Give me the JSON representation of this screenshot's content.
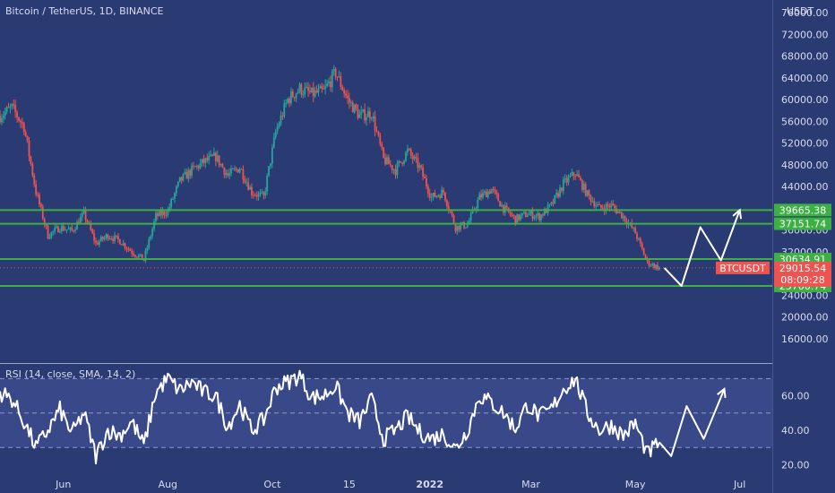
{
  "symbol_title": "Bitcoin / TetherUS, 1D, BINANCE",
  "currency": "USDT",
  "colors": {
    "background": "#2a3a72",
    "up": "#26a69a",
    "down": "#ef5350",
    "level_line": "#3cb043",
    "label_green": "#3cb043",
    "label_red": "#ef5350",
    "projection": "#ffffff",
    "rsi_line": "#ffffff",
    "rsi_band": "#3a4a8c"
  },
  "chart_data": [
    {
      "type": "candlestick",
      "title": "Bitcoin / TetherUS, 1D, BINANCE",
      "ylabel": "USDT",
      "y_ticks": [
        16000,
        20000,
        24000,
        28000,
        32000,
        36000,
        40000,
        44000,
        48000,
        52000,
        56000,
        60000,
        64000,
        68000,
        72000,
        76000
      ],
      "y_tick_labels": [
        "16000.00",
        "20000.00",
        "24000.00",
        "28000.00",
        "32000.00",
        "36000.00",
        "40000.00",
        "44000.00",
        "48000.00",
        "52000.00",
        "56000.00",
        "60000.00",
        "64000.00",
        "68000.00",
        "72000.00",
        "76000.00"
      ],
      "ylim": [
        12000,
        78000
      ],
      "x_labels": [
        "Jun",
        "Aug",
        "Oct",
        "15",
        "2022",
        "Mar",
        "May",
        "Jul"
      ],
      "x_label_dates": [
        "2021-06-01",
        "2021-08-01",
        "2021-10-01",
        "2021-11-15",
        "2022-01-01",
        "2022-03-01",
        "2022-05-01",
        "2022-07-01"
      ],
      "xlim": [
        "2021-04-25",
        "2022-07-20"
      ],
      "closes_weekly": [
        {
          "date": "2021-04-25",
          "close": 57000
        },
        {
          "date": "2021-05-02",
          "close": 58500
        },
        {
          "date": "2021-05-09",
          "close": 55000
        },
        {
          "date": "2021-05-16",
          "close": 43000
        },
        {
          "date": "2021-05-23",
          "close": 35000
        },
        {
          "date": "2021-05-30",
          "close": 36500
        },
        {
          "date": "2021-06-06",
          "close": 35800
        },
        {
          "date": "2021-06-13",
          "close": 39000
        },
        {
          "date": "2021-06-20",
          "close": 33500
        },
        {
          "date": "2021-06-27",
          "close": 35000
        },
        {
          "date": "2021-07-04",
          "close": 34000
        },
        {
          "date": "2021-07-11",
          "close": 32000
        },
        {
          "date": "2021-07-18",
          "close": 30500
        },
        {
          "date": "2021-07-25",
          "close": 38500
        },
        {
          "date": "2021-08-01",
          "close": 39500
        },
        {
          "date": "2021-08-08",
          "close": 45000
        },
        {
          "date": "2021-08-15",
          "close": 47000
        },
        {
          "date": "2021-08-22",
          "close": 48500
        },
        {
          "date": "2021-08-29",
          "close": 49500
        },
        {
          "date": "2021-09-05",
          "close": 46000
        },
        {
          "date": "2021-09-12",
          "close": 47500
        },
        {
          "date": "2021-09-19",
          "close": 43000
        },
        {
          "date": "2021-09-26",
          "close": 42000
        },
        {
          "date": "2021-10-03",
          "close": 54000
        },
        {
          "date": "2021-10-10",
          "close": 60000
        },
        {
          "date": "2021-10-17",
          "close": 62000
        },
        {
          "date": "2021-10-24",
          "close": 61000
        },
        {
          "date": "2021-10-31",
          "close": 61500
        },
        {
          "date": "2021-11-07",
          "close": 65000
        },
        {
          "date": "2021-11-14",
          "close": 60000
        },
        {
          "date": "2021-11-21",
          "close": 57000
        },
        {
          "date": "2021-11-28",
          "close": 57500
        },
        {
          "date": "2021-12-05",
          "close": 49000
        },
        {
          "date": "2021-12-12",
          "close": 47000
        },
        {
          "date": "2021-12-19",
          "close": 50500
        },
        {
          "date": "2021-12-26",
          "close": 47500
        },
        {
          "date": "2022-01-02",
          "close": 42000
        },
        {
          "date": "2022-01-09",
          "close": 43000
        },
        {
          "date": "2022-01-16",
          "close": 36500
        },
        {
          "date": "2022-01-23",
          "close": 37000
        },
        {
          "date": "2022-01-30",
          "close": 42000
        },
        {
          "date": "2022-02-06",
          "close": 43500
        },
        {
          "date": "2022-02-13",
          "close": 40000
        },
        {
          "date": "2022-02-20",
          "close": 38000
        },
        {
          "date": "2022-02-27",
          "close": 39000
        },
        {
          "date": "2022-03-06",
          "close": 38500
        },
        {
          "date": "2022-03-13",
          "close": 40500
        },
        {
          "date": "2022-03-20",
          "close": 44500
        },
        {
          "date": "2022-03-27",
          "close": 46500
        },
        {
          "date": "2022-04-03",
          "close": 42500
        },
        {
          "date": "2022-04-10",
          "close": 40000
        },
        {
          "date": "2022-04-17",
          "close": 40500
        },
        {
          "date": "2022-04-24",
          "close": 38500
        },
        {
          "date": "2022-05-01",
          "close": 35500
        },
        {
          "date": "2022-05-08",
          "close": 30000
        },
        {
          "date": "2022-05-15",
          "close": 29015.54
        }
      ],
      "levels": [
        {
          "value": 39665.38,
          "label": "39665.38"
        },
        {
          "value": 37151.74,
          "label": "37151.74"
        },
        {
          "value": 30634.91,
          "label": "30634.91"
        },
        {
          "value": 25700.74,
          "label": "25700.74"
        }
      ],
      "last_price": {
        "symbol": "BTCUSDT",
        "value": 29015.54,
        "label": "29015.54",
        "countdown": "08:09:28"
      },
      "projection_path": [
        {
          "date": "2022-05-18",
          "value": 29015.54
        },
        {
          "date": "2022-05-28",
          "value": 25700
        },
        {
          "date": "2022-06-08",
          "value": 36500
        },
        {
          "date": "2022-06-20",
          "value": 30400
        },
        {
          "date": "2022-07-01",
          "value": 39665
        }
      ]
    },
    {
      "type": "line",
      "title": "RSI (14, close, SMA, 14, 2)",
      "y_ticks": [
        20,
        40,
        60
      ],
      "y_tick_labels": [
        "20.00",
        "40.00",
        "60.00"
      ],
      "ylim": [
        15,
        78
      ],
      "band": [
        30,
        70
      ],
      "mid": 50,
      "values_weekly": [
        {
          "date": "2021-04-25",
          "value": 62
        },
        {
          "date": "2021-05-02",
          "value": 58
        },
        {
          "date": "2021-05-09",
          "value": 45
        },
        {
          "date": "2021-05-16",
          "value": 30
        },
        {
          "date": "2021-05-23",
          "value": 40
        },
        {
          "date": "2021-05-30",
          "value": 52
        },
        {
          "date": "2021-06-06",
          "value": 38
        },
        {
          "date": "2021-06-13",
          "value": 50
        },
        {
          "date": "2021-06-20",
          "value": 25
        },
        {
          "date": "2021-06-27",
          "value": 40
        },
        {
          "date": "2021-07-04",
          "value": 37
        },
        {
          "date": "2021-07-11",
          "value": 45
        },
        {
          "date": "2021-07-18",
          "value": 31
        },
        {
          "date": "2021-07-25",
          "value": 62
        },
        {
          "date": "2021-08-01",
          "value": 70
        },
        {
          "date": "2021-08-08",
          "value": 63
        },
        {
          "date": "2021-08-15",
          "value": 68
        },
        {
          "date": "2021-08-22",
          "value": 62
        },
        {
          "date": "2021-08-29",
          "value": 60
        },
        {
          "date": "2021-09-05",
          "value": 42
        },
        {
          "date": "2021-09-12",
          "value": 55
        },
        {
          "date": "2021-09-19",
          "value": 40
        },
        {
          "date": "2021-09-26",
          "value": 46
        },
        {
          "date": "2021-10-03",
          "value": 65
        },
        {
          "date": "2021-10-10",
          "value": 68
        },
        {
          "date": "2021-10-17",
          "value": 72
        },
        {
          "date": "2021-10-24",
          "value": 59
        },
        {
          "date": "2021-10-31",
          "value": 60
        },
        {
          "date": "2021-11-07",
          "value": 66
        },
        {
          "date": "2021-11-14",
          "value": 50
        },
        {
          "date": "2021-11-21",
          "value": 45
        },
        {
          "date": "2021-11-28",
          "value": 58
        },
        {
          "date": "2021-12-05",
          "value": 35
        },
        {
          "date": "2021-12-12",
          "value": 40
        },
        {
          "date": "2021-12-19",
          "value": 48
        },
        {
          "date": "2021-12-26",
          "value": 39
        },
        {
          "date": "2022-01-02",
          "value": 35
        },
        {
          "date": "2022-01-09",
          "value": 38
        },
        {
          "date": "2022-01-16",
          "value": 29
        },
        {
          "date": "2022-01-23",
          "value": 40
        },
        {
          "date": "2022-01-30",
          "value": 60
        },
        {
          "date": "2022-02-06",
          "value": 56
        },
        {
          "date": "2022-02-13",
          "value": 50
        },
        {
          "date": "2022-02-20",
          "value": 41
        },
        {
          "date": "2022-02-27",
          "value": 55
        },
        {
          "date": "2022-03-06",
          "value": 48
        },
        {
          "date": "2022-03-13",
          "value": 52
        },
        {
          "date": "2022-03-20",
          "value": 64
        },
        {
          "date": "2022-03-27",
          "value": 70
        },
        {
          "date": "2022-04-03",
          "value": 50
        },
        {
          "date": "2022-04-10",
          "value": 40
        },
        {
          "date": "2022-04-17",
          "value": 43
        },
        {
          "date": "2022-04-24",
          "value": 37
        },
        {
          "date": "2022-05-01",
          "value": 44
        },
        {
          "date": "2022-05-08",
          "value": 26
        },
        {
          "date": "2022-05-15",
          "value": 33
        }
      ],
      "projection_path": [
        {
          "date": "2022-05-15",
          "value": 33
        },
        {
          "date": "2022-05-22",
          "value": 25
        },
        {
          "date": "2022-05-31",
          "value": 54
        },
        {
          "date": "2022-06-10",
          "value": 35
        },
        {
          "date": "2022-06-22",
          "value": 64
        }
      ]
    }
  ]
}
